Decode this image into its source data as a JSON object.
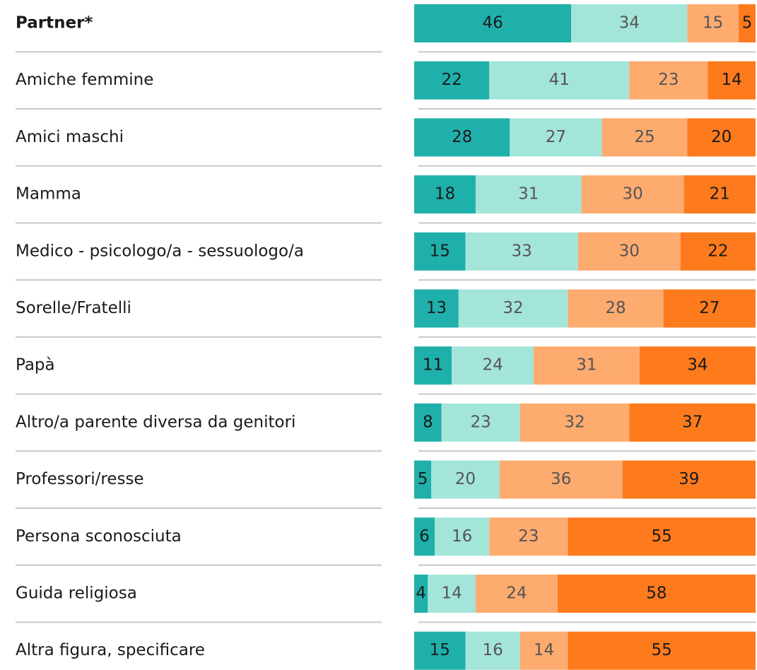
{
  "chart_data": {
    "type": "stacked-bar-horizontal",
    "categories": [
      "Partner*",
      "Amiche femmine",
      "Amici maschi",
      "Mamma",
      "Medico - psicologo/a - sessuologo/a",
      "Sorelle/Fratelli",
      "Papà",
      "Altro/a parente diversa da genitori",
      "Professori/resse",
      "Persona sconosciuta",
      "Guida religiosa",
      "Altra figura, specificare"
    ],
    "series": [
      {
        "color": "#1fb0ab",
        "values": [
          46,
          22,
          28,
          18,
          15,
          13,
          11,
          8,
          5,
          6,
          4,
          15
        ]
      },
      {
        "color": "#a4e5d9",
        "values": [
          34,
          41,
          27,
          31,
          33,
          32,
          24,
          23,
          20,
          16,
          14,
          16
        ]
      },
      {
        "color": "#fdab6f",
        "values": [
          15,
          23,
          25,
          30,
          30,
          28,
          31,
          32,
          36,
          23,
          24,
          14
        ]
      },
      {
        "color": "#fd7a1d",
        "values": [
          5,
          14,
          20,
          21,
          22,
          27,
          34,
          37,
          39,
          55,
          58,
          55
        ]
      }
    ],
    "xlim": [
      0,
      100
    ]
  }
}
